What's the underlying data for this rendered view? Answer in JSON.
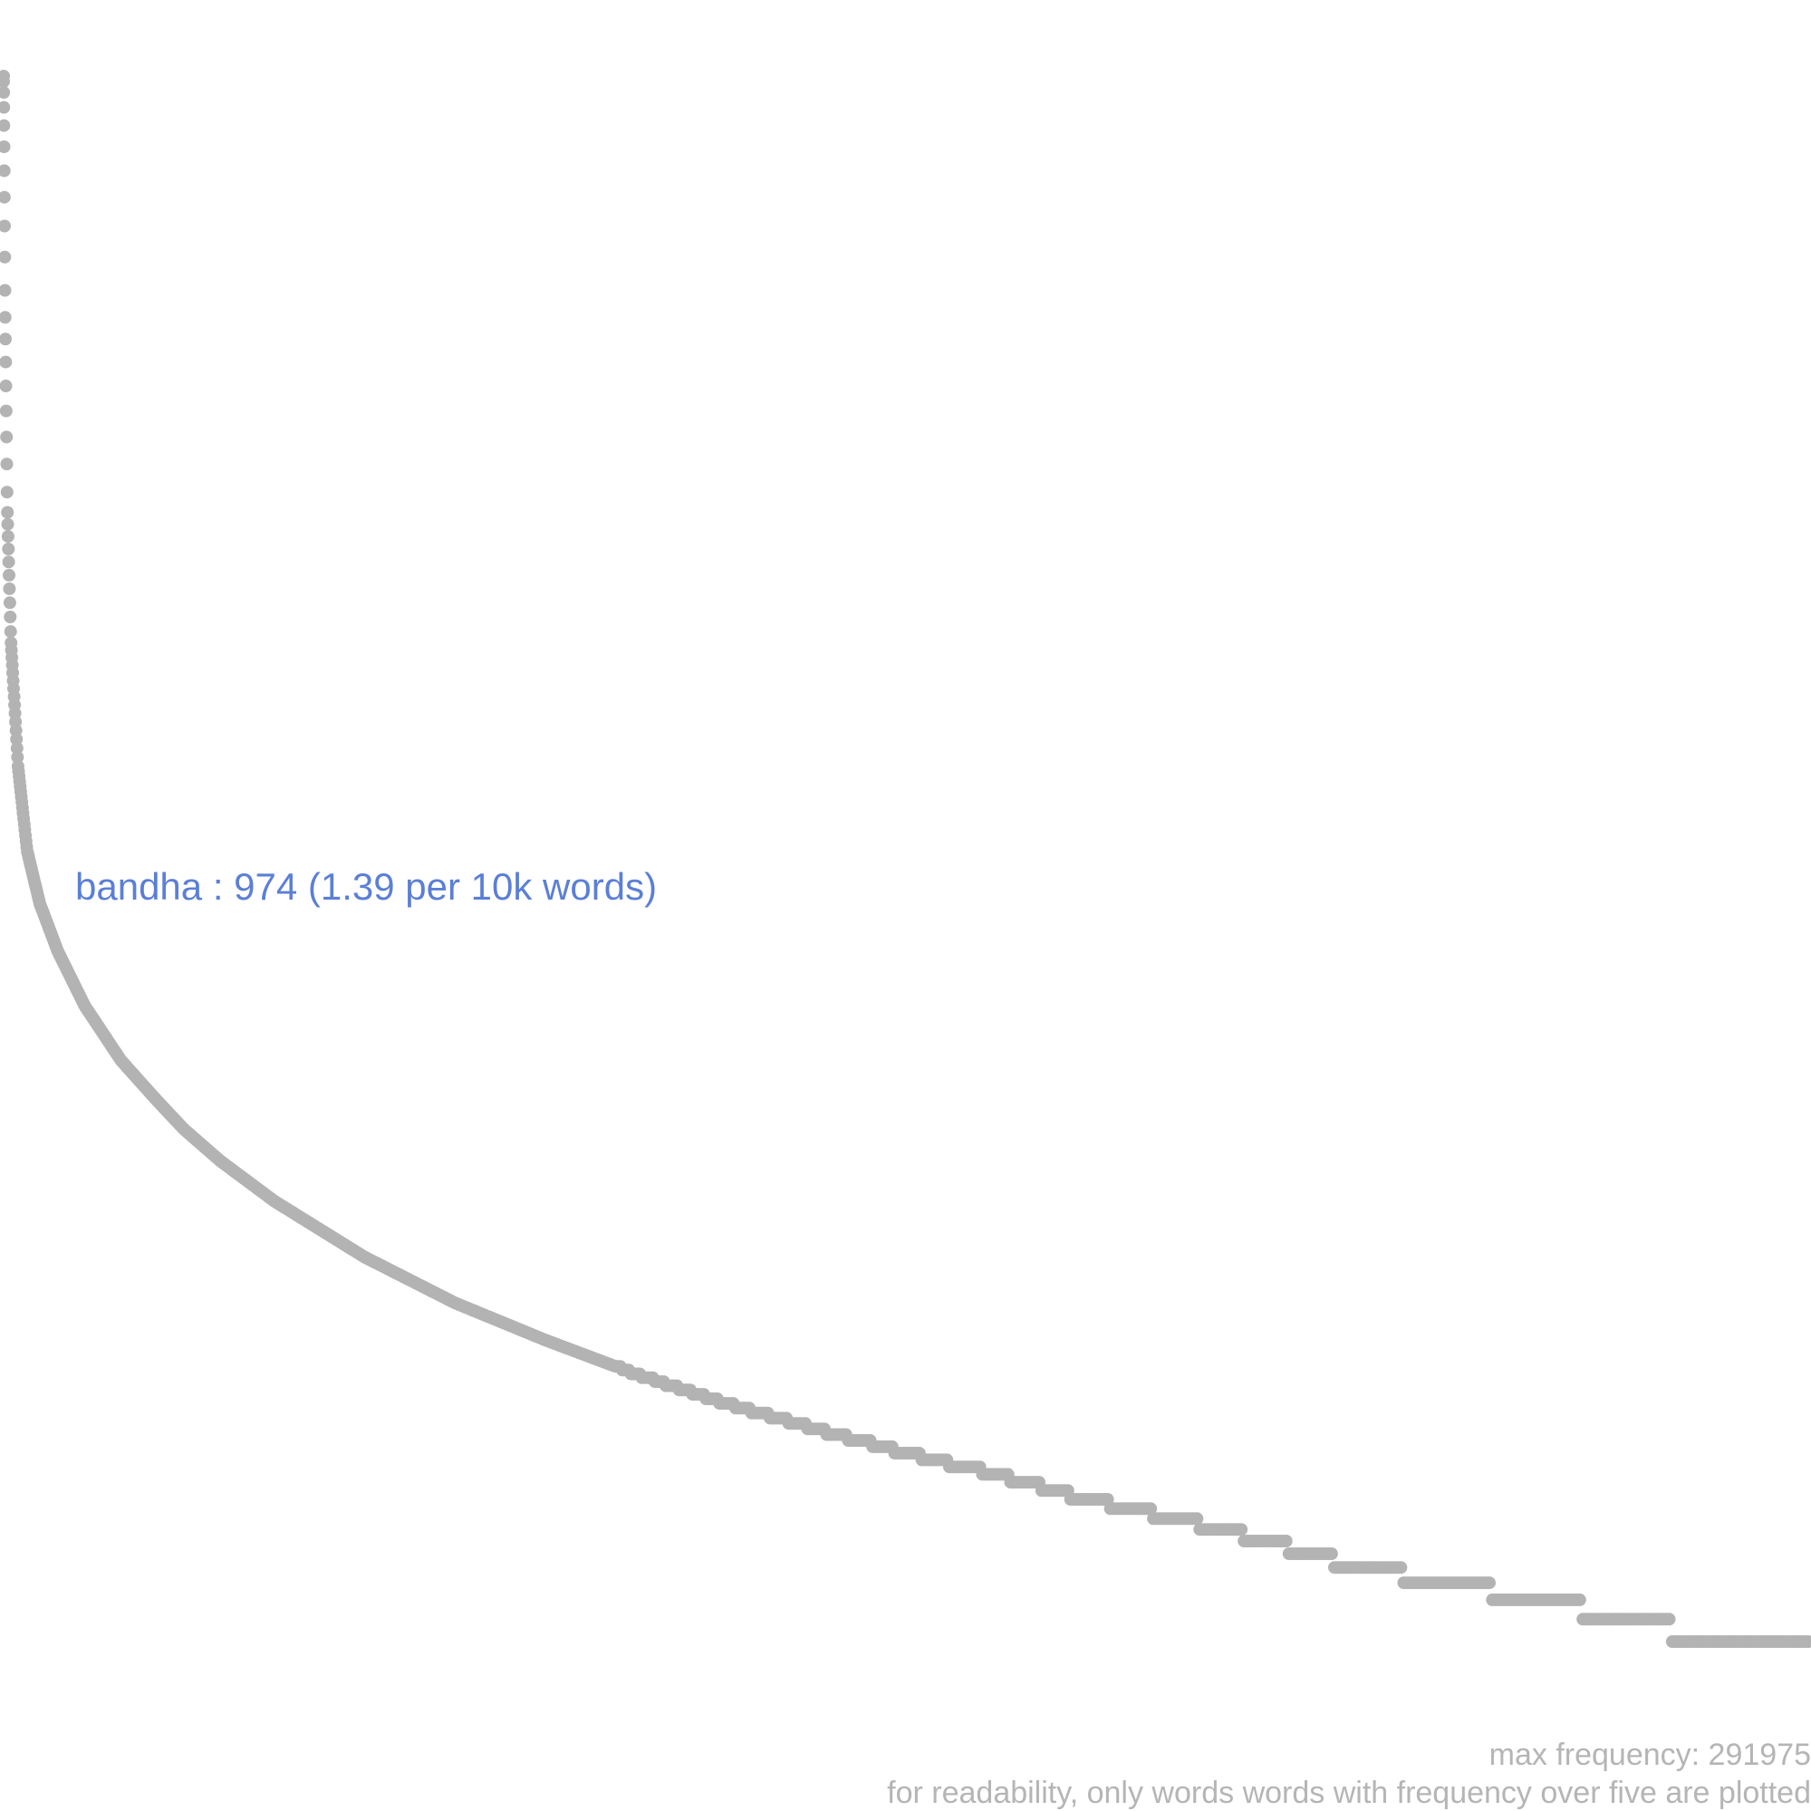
{
  "chart_data": {
    "type": "scatter",
    "description_of_axes": "",
    "xlabel": "",
    "ylabel": "",
    "y_scale": "log",
    "grid": false,
    "legend": "none",
    "colors": {
      "points": "#b3b3b3",
      "highlight": "#5b7fd6",
      "notes": "#b5b5b5"
    },
    "curve": {
      "comment_free": true,
      "x": [
        0,
        0.0008,
        0.002,
        0.004,
        0.008,
        0.013,
        0.02,
        0.03,
        0.045,
        0.065,
        0.085,
        0.1,
        0.12,
        0.15,
        0.2,
        0.25,
        0.3,
        0.35,
        0.4,
        0.45,
        0.5,
        0.55,
        0.6,
        0.65,
        0.7,
        0.75,
        0.8,
        0.85,
        0.9,
        0.95,
        1.0
      ],
      "y": [
        291975,
        60000,
        15000,
        6000,
        2500,
        1400,
        974,
        700,
        480,
        330,
        250,
        205,
        165,
        125,
        85,
        62,
        48,
        38,
        31,
        26,
        22,
        19,
        16,
        14,
        12,
        10,
        9,
        8,
        7,
        6,
        6
      ]
    },
    "highlight": {
      "word": "bandha",
      "frequency": 974,
      "label": "bandha : 974 (1.39 per 10k words)"
    }
  },
  "notes": {
    "max_frequency": "max frequency: 291975",
    "readability": "for readability, only words words with frequency over five are plotted"
  }
}
